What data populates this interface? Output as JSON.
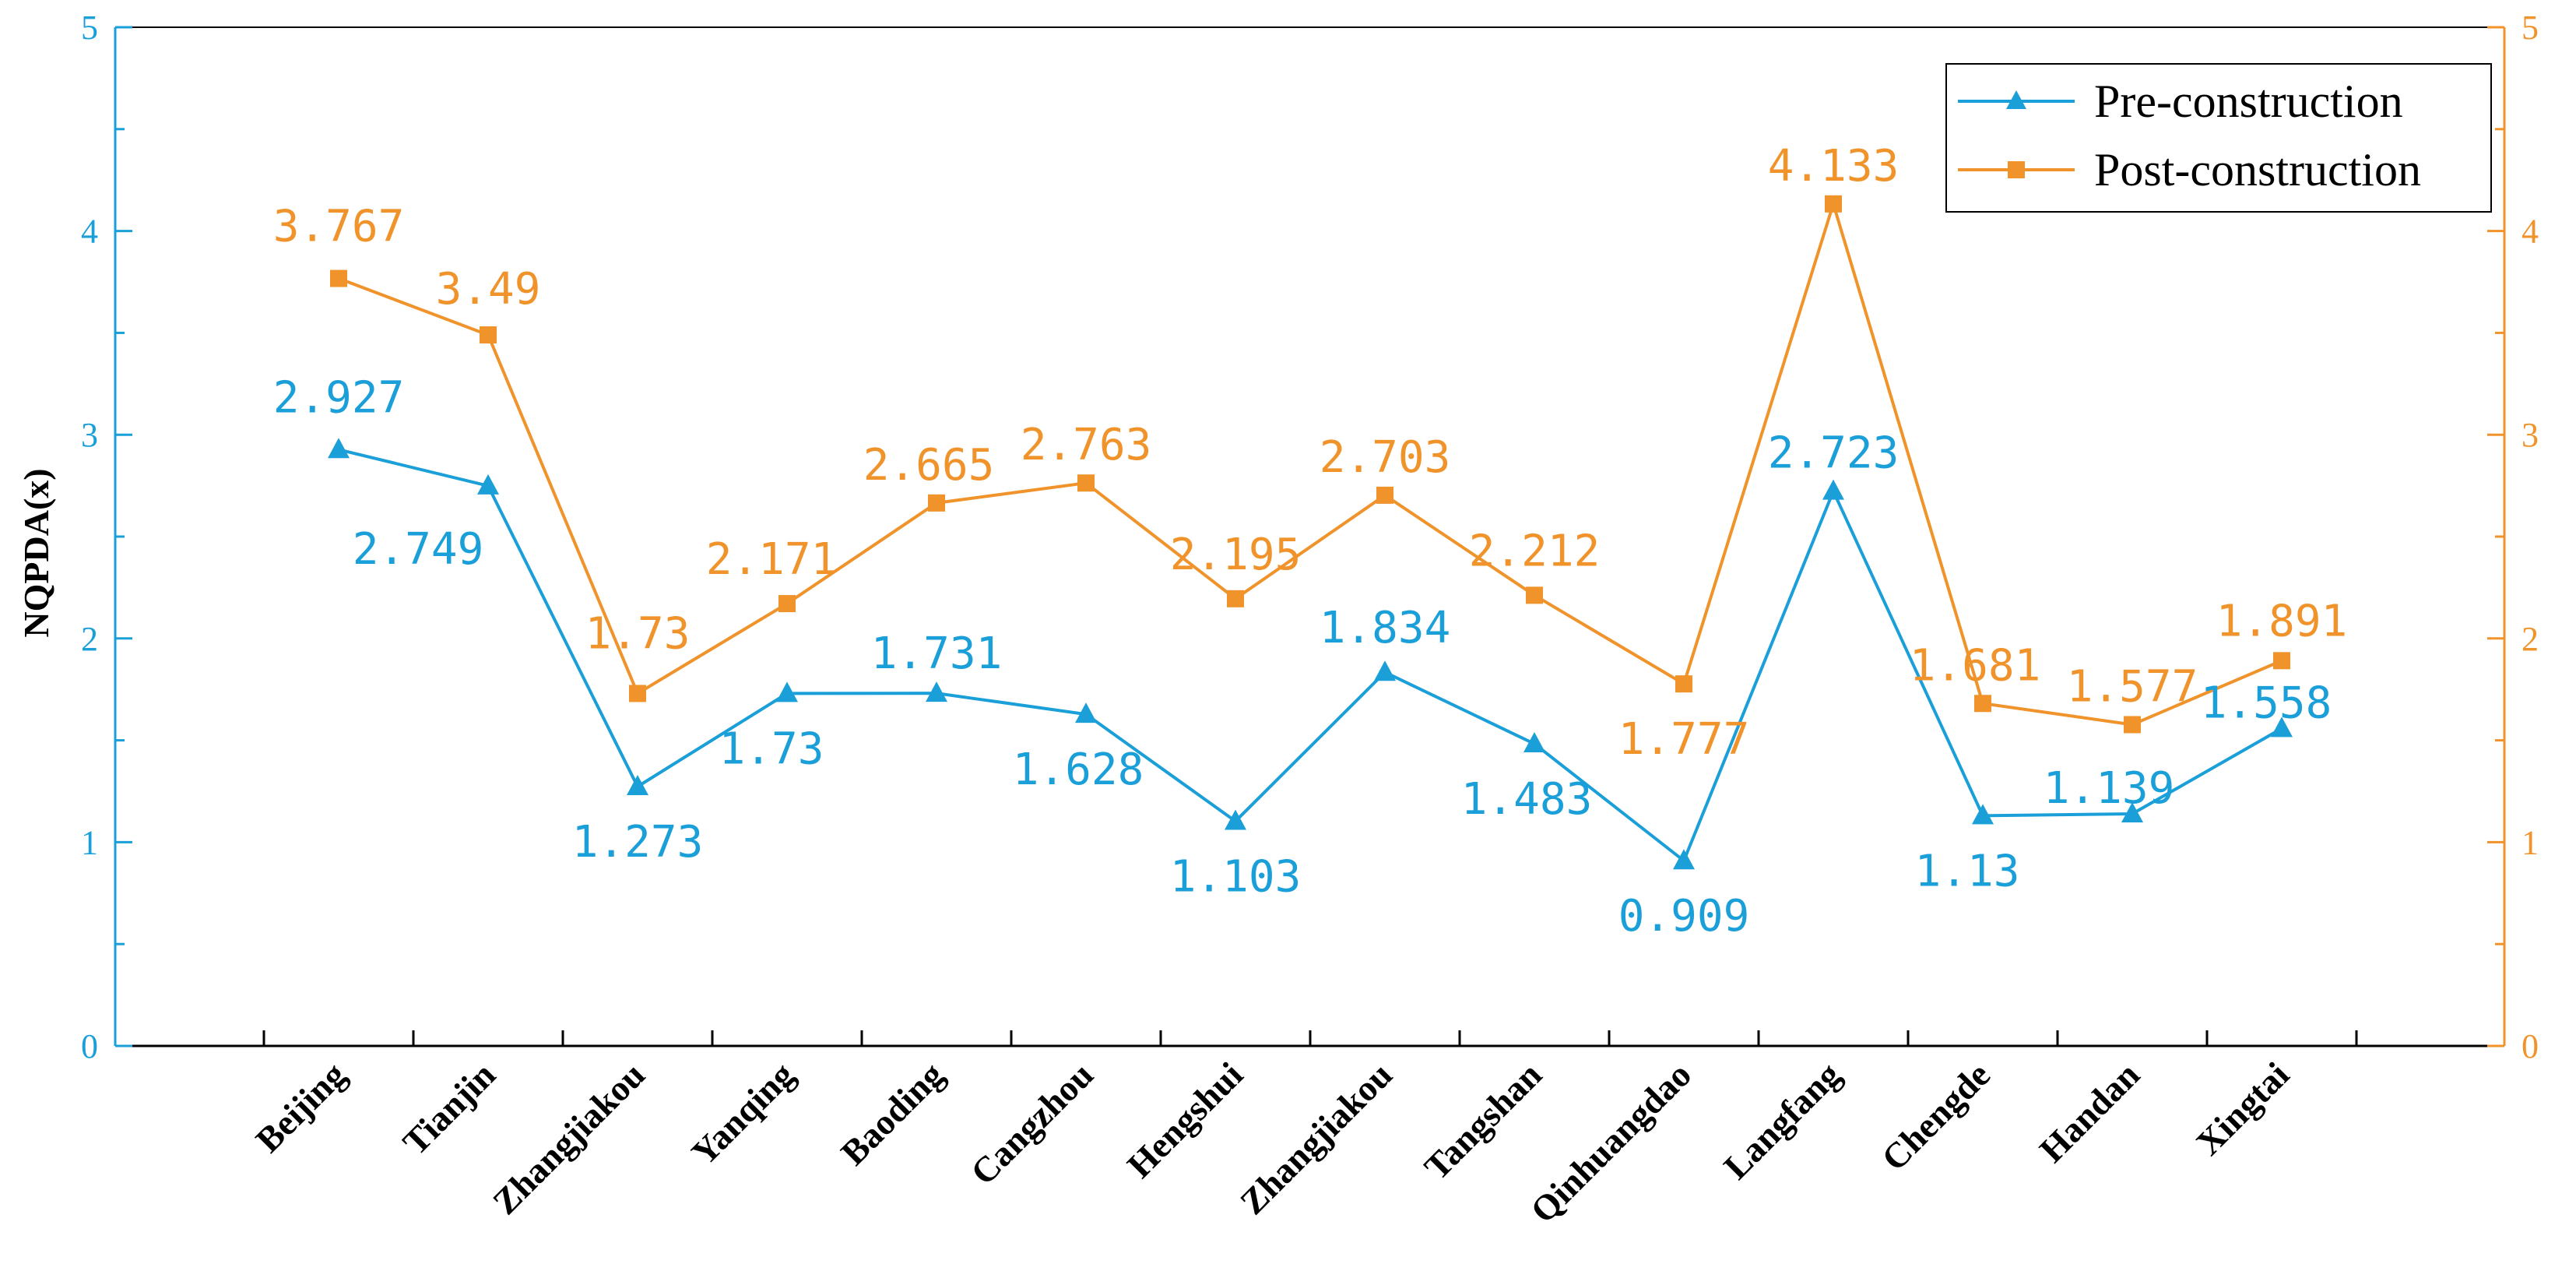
{
  "chart_data": {
    "type": "line",
    "title": "",
    "xlabel": "",
    "ylabel": "NQPDA(x)",
    "ylim": [
      0,
      5
    ],
    "yticks": [
      "0",
      "1",
      "2",
      "3",
      "4",
      "5"
    ],
    "legend_position": "top-right",
    "grid": false,
    "categories": [
      "Beijing",
      "Tianjin",
      "Zhangjiakou",
      "Yanqing",
      "Baoding",
      "Cangzhou",
      "Hengshui",
      "Zhangjiakou",
      "Tangshan",
      "Qinhuangdao",
      "Langfang",
      "Chengde",
      "Handan",
      "Xingtai"
    ],
    "series": [
      {
        "name": "Pre-construction",
        "color": "#1a9fd8",
        "marker": "triangle",
        "axis": "left",
        "values": [
          2.927,
          2.749,
          1.273,
          1.73,
          1.731,
          1.628,
          1.103,
          1.834,
          1.483,
          0.909,
          2.723,
          1.13,
          1.139,
          1.558
        ],
        "labels": [
          "2.927",
          "2.749",
          "1.273",
          "1.73",
          "1.731",
          "1.628",
          "1.103",
          "1.834",
          "1.483",
          "0.909",
          "2.723",
          "1.13",
          "1.139",
          "1.558"
        ]
      },
      {
        "name": "Post-construction",
        "color": "#f0932b",
        "marker": "square",
        "axis": "right",
        "values": [
          3.767,
          3.49,
          1.73,
          2.171,
          2.665,
          2.763,
          2.195,
          2.703,
          2.212,
          1.777,
          4.133,
          1.681,
          1.577,
          1.891
        ],
        "labels": [
          "3.767",
          "3.49",
          "1.73",
          "2.171",
          "2.665",
          "2.763",
          "2.195",
          "2.703",
          "2.212",
          "1.777",
          "4.133",
          "1.681",
          "1.577",
          "1.891"
        ]
      }
    ]
  }
}
